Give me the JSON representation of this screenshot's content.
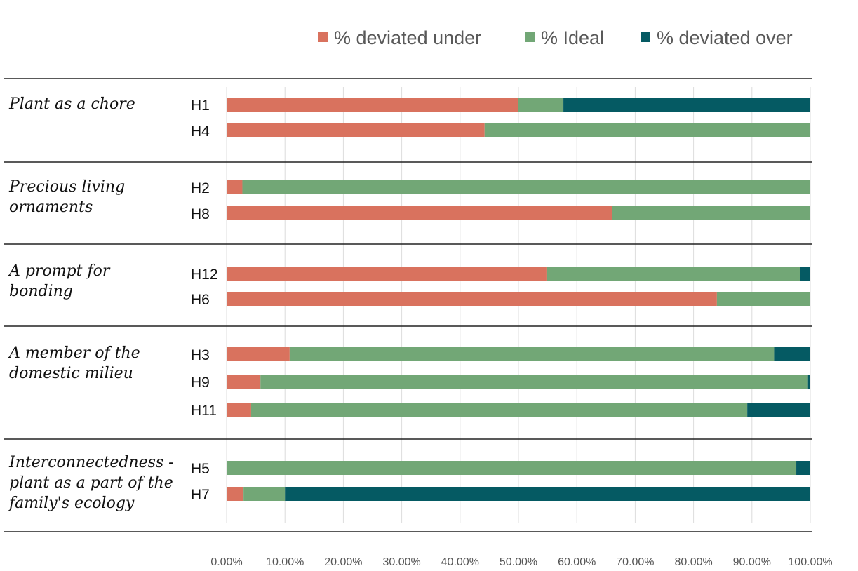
{
  "chart_data": {
    "type": "bar",
    "orientation": "horizontal",
    "stacked": true,
    "x_unit": "percent",
    "xlim": [
      0,
      100
    ],
    "x_ticks": [
      "0.00%",
      "10.00%",
      "20.00%",
      "30.00%",
      "40.00%",
      "50.00%",
      "60.00%",
      "70.00%",
      "80.00%",
      "90.00%",
      "100.00%"
    ],
    "legend_position": "top-right",
    "legend": [
      {
        "key": "under",
        "label": "% deviated under",
        "color": "#D9725E"
      },
      {
        "key": "ideal",
        "label": "% Ideal",
        "color": "#72A776"
      },
      {
        "key": "over",
        "label": "% deviated over",
        "color": "#055A63"
      }
    ],
    "groups": [
      {
        "label_lines": [
          "Plant as a chore"
        ],
        "rows": [
          {
            "label": "H1",
            "under": 50,
            "ideal": 7.7,
            "over": 42.3
          },
          {
            "label": "H4",
            "under": 44.2,
            "ideal": 55.8,
            "over": 0
          }
        ]
      },
      {
        "label_lines": [
          "Precious living",
          "ornaments"
        ],
        "rows": [
          {
            "label": "H2",
            "under": 2.7,
            "ideal": 97.3,
            "over": 0
          },
          {
            "label": "H8",
            "under": 66,
            "ideal": 34,
            "over": 0
          }
        ]
      },
      {
        "label_lines": [
          "A prompt for",
          "bonding"
        ],
        "rows": [
          {
            "label": "H12",
            "under": 54.8,
            "ideal": 43.5,
            "over": 1.7
          },
          {
            "label": "H6",
            "under": 84,
            "ideal": 16,
            "over": 0
          }
        ]
      },
      {
        "label_lines": [
          "A member of the",
          "domestic milieu"
        ],
        "rows": [
          {
            "label": "H3",
            "under": 10.8,
            "ideal": 83,
            "over": 6.2
          },
          {
            "label": "H9",
            "under": 5.8,
            "ideal": 93.8,
            "over": 0.4
          },
          {
            "label": "H11",
            "under": 4.2,
            "ideal": 85,
            "over": 10.8
          }
        ]
      },
      {
        "label_lines": [
          "Interconnectedness -",
          "plant as a part of the",
          "family's ecology"
        ],
        "rows": [
          {
            "label": "H5",
            "under": 0,
            "ideal": 97.6,
            "over": 2.4
          },
          {
            "label": "H7",
            "under": 2.9,
            "ideal": 7.1,
            "over": 90
          }
        ]
      }
    ]
  }
}
